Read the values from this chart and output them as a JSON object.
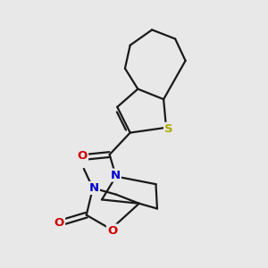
{
  "background_color": "#e8e8e8",
  "bond_color": "#1a1a1a",
  "S_color": "#aaaa00",
  "N_color": "#0000cc",
  "O_color": "#cc0000",
  "line_width": 1.6,
  "figsize": [
    3.0,
    3.0
  ],
  "dpi": 100,
  "xlim": [
    0,
    10
  ],
  "ylim": [
    0,
    10
  ]
}
